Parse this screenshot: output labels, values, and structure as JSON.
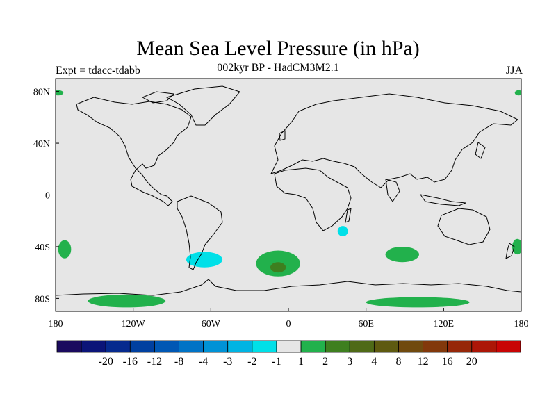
{
  "title": "Mean Sea Level Pressure (in hPa)",
  "subtitle": "002kyr BP - HadCM3M2.1",
  "experiment": "Expt = tdacc-tdabb",
  "season": "JJA",
  "colors": {
    "background": "#e6e6e6",
    "coast": "#000000",
    "positive_1": "#22b14c",
    "positive_2": "#3e7f1f",
    "positive_3": "#57631a",
    "negative_1": "#00e0e8"
  },
  "chart_data": {
    "type": "map",
    "projection": "cylindrical-equidistant",
    "lon_range": [
      -180,
      180
    ],
    "lat_range": [
      -90,
      90
    ],
    "x_ticks": [
      {
        "lon": -180,
        "label": "180"
      },
      {
        "lon": -120,
        "label": "120W"
      },
      {
        "lon": -60,
        "label": "60W"
      },
      {
        "lon": 0,
        "label": "0"
      },
      {
        "lon": 60,
        "label": "60E"
      },
      {
        "lon": 120,
        "label": "120E"
      },
      {
        "lon": 180,
        "label": "180"
      }
    ],
    "y_ticks": [
      {
        "lat": 80,
        "label": "80N"
      },
      {
        "lat": 40,
        "label": "40N"
      },
      {
        "lat": 0,
        "label": "0"
      },
      {
        "lat": -40,
        "label": "40S"
      },
      {
        "lat": -80,
        "label": "80S"
      }
    ],
    "colorbar": {
      "colors": [
        "#1a0a5e",
        "#0b1478",
        "#062a8e",
        "#0040a0",
        "#0057b4",
        "#0073c6",
        "#0092d6",
        "#00b4e3",
        "#00e0e8",
        "#e6e6e6",
        "#22b14c",
        "#3e7f1f",
        "#4f6a17",
        "#5e5a10",
        "#704a0e",
        "#82380b",
        "#962709",
        "#ac1607",
        "#c80505"
      ],
      "labels": [
        "-20",
        "-16",
        "-12",
        "-8",
        "-4",
        "-3",
        "-2",
        "-1",
        "1",
        "2",
        "3",
        "4",
        "8",
        "12",
        "16",
        "20"
      ]
    },
    "anomaly_regions": [
      {
        "name": "south-atlantic-high",
        "level": "2",
        "center": [
          -8,
          -53
        ],
        "radii": [
          17,
          10
        ]
      },
      {
        "name": "south-atlantic-core",
        "level": "3",
        "center": [
          -8,
          -56
        ],
        "radii": [
          6,
          4
        ]
      },
      {
        "name": "south-indian-high",
        "level": "2",
        "center": [
          88,
          -46
        ],
        "radii": [
          13,
          6
        ]
      },
      {
        "name": "south-pacific-east-high",
        "level": "2",
        "center": [
          -173,
          -42
        ],
        "radii": [
          5,
          7
        ]
      },
      {
        "name": "new-zealand-high",
        "level": "2",
        "center": [
          177,
          -40
        ],
        "radii": [
          4,
          6
        ]
      },
      {
        "name": "patagonia-low",
        "level": "-1",
        "center": [
          -65,
          -50
        ],
        "radii": [
          14,
          6
        ]
      },
      {
        "name": "madagascar-low",
        "level": "-1",
        "center": [
          42,
          -28
        ],
        "radii": [
          4,
          4
        ]
      },
      {
        "name": "antarctic-coast-high-west",
        "level": "2",
        "center": [
          -125,
          -82
        ],
        "radii": [
          30,
          5
        ]
      },
      {
        "name": "antarctic-coast-high-east",
        "level": "2",
        "center": [
          100,
          -83
        ],
        "radii": [
          40,
          4
        ]
      },
      {
        "name": "arctic-high-west",
        "level": "2",
        "center": [
          -178,
          79
        ],
        "radii": [
          4,
          2
        ]
      },
      {
        "name": "arctic-high-east",
        "level": "2",
        "center": [
          178,
          79
        ],
        "radii": [
          3,
          2
        ]
      }
    ]
  }
}
